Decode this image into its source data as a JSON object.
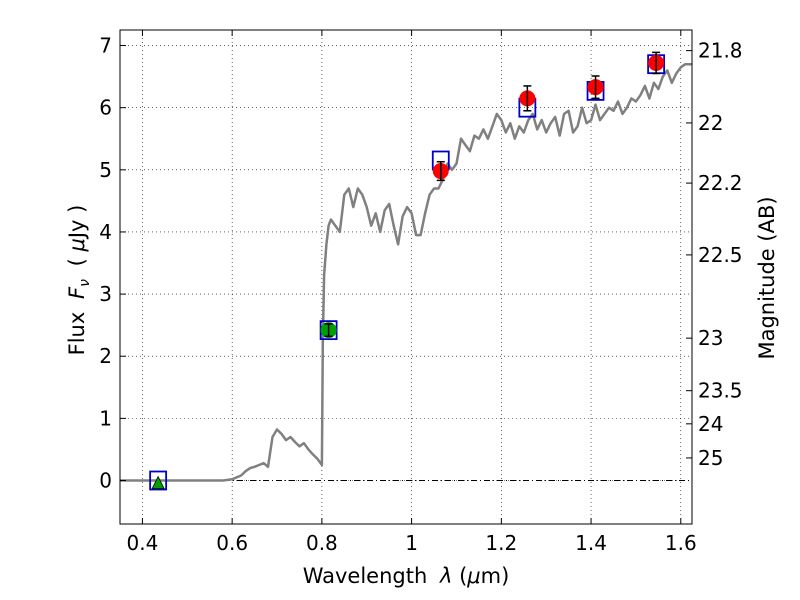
{
  "chart_data": {
    "type": "scatter",
    "title": "",
    "xlabel": {
      "text": "Wavelength",
      "symbol": "λ",
      "unit_open": "(",
      "unit_mu": "μ",
      "unit_rest": "m)"
    },
    "ylabel": {
      "text": "Flux",
      "symbol": "F",
      "sub": "ν",
      "unit_open": "(",
      "unit_mu": "μ",
      "unit_rest": "Jy",
      "unit_close": ")"
    },
    "ylabel_right": "Magnitude (AB)",
    "xlim": [
      0.35,
      1.625
    ],
    "ylim": [
      -0.7,
      7.25
    ],
    "x_ticks": [
      0.4,
      0.6,
      0.8,
      1.0,
      1.2,
      1.4,
      1.6
    ],
    "x_tick_labels": [
      "0.4",
      "0.6",
      "0.8",
      "1",
      "1.2",
      "1.4",
      "1.6"
    ],
    "y_ticks": [
      0,
      1,
      2,
      3,
      4,
      5,
      6,
      7
    ],
    "y_tick_labels": [
      "0",
      "1",
      "2",
      "3",
      "4",
      "5",
      "6",
      "7"
    ],
    "right_ticks": [
      {
        "label": "21.8",
        "mag": 21.8
      },
      {
        "label": "22",
        "mag": 22.0
      },
      {
        "label": "22.2",
        "mag": 22.2
      },
      {
        "label": "22.5",
        "mag": 22.5
      },
      {
        "label": "23",
        "mag": 23.0
      },
      {
        "label": "23.5",
        "mag": 23.5
      },
      {
        "label": "24",
        "mag": 24.0
      },
      {
        "label": "25",
        "mag": 25.0
      }
    ],
    "grid": true,
    "zero_line": true,
    "colors": {
      "model": "#808080",
      "detection": "#ff0000",
      "green": "#00a000",
      "model_box": "#0000cc",
      "errorbar": "#000000"
    },
    "model_sed": {
      "x": [
        0.35,
        0.4,
        0.45,
        0.5,
        0.55,
        0.58,
        0.6,
        0.61,
        0.62,
        0.63,
        0.64,
        0.65,
        0.66,
        0.67,
        0.68,
        0.69,
        0.7,
        0.71,
        0.72,
        0.73,
        0.74,
        0.75,
        0.76,
        0.77,
        0.78,
        0.79,
        0.8,
        0.802,
        0.805,
        0.81,
        0.815,
        0.82,
        0.83,
        0.84,
        0.85,
        0.86,
        0.87,
        0.88,
        0.89,
        0.9,
        0.91,
        0.92,
        0.93,
        0.94,
        0.95,
        0.96,
        0.97,
        0.98,
        0.99,
        1.0,
        1.01,
        1.02,
        1.03,
        1.04,
        1.05,
        1.06,
        1.07,
        1.08,
        1.09,
        1.1,
        1.11,
        1.12,
        1.13,
        1.14,
        1.15,
        1.16,
        1.17,
        1.18,
        1.19,
        1.2,
        1.21,
        1.22,
        1.23,
        1.24,
        1.25,
        1.26,
        1.27,
        1.28,
        1.29,
        1.3,
        1.31,
        1.32,
        1.33,
        1.34,
        1.35,
        1.36,
        1.37,
        1.38,
        1.39,
        1.4,
        1.41,
        1.42,
        1.43,
        1.44,
        1.45,
        1.46,
        1.47,
        1.48,
        1.49,
        1.5,
        1.51,
        1.52,
        1.53,
        1.54,
        1.55,
        1.56,
        1.57,
        1.58,
        1.59,
        1.6,
        1.61,
        1.62,
        1.625
      ],
      "y": [
        0.0,
        0.0,
        0.0,
        0.0,
        0.0,
        0.0,
        0.02,
        0.05,
        0.08,
        0.15,
        0.2,
        0.22,
        0.25,
        0.28,
        0.22,
        0.7,
        0.82,
        0.75,
        0.65,
        0.7,
        0.62,
        0.55,
        0.6,
        0.5,
        0.42,
        0.35,
        0.25,
        2.2,
        3.3,
        3.8,
        4.1,
        4.2,
        4.1,
        4.0,
        4.6,
        4.7,
        4.4,
        4.7,
        4.6,
        4.4,
        4.1,
        4.3,
        4.0,
        4.35,
        4.45,
        4.1,
        3.8,
        4.25,
        4.4,
        4.3,
        3.95,
        3.95,
        4.3,
        4.6,
        4.7,
        4.7,
        4.85,
        5.1,
        5.0,
        5.1,
        5.5,
        5.4,
        5.3,
        5.55,
        5.5,
        5.65,
        5.5,
        5.7,
        5.9,
        5.8,
        5.6,
        5.75,
        5.5,
        5.7,
        5.6,
        5.8,
        5.9,
        5.65,
        5.8,
        5.6,
        5.75,
        5.85,
        5.55,
        5.9,
        5.95,
        5.6,
        5.7,
        6.0,
        5.75,
        5.8,
        6.05,
        5.8,
        5.9,
        6.0,
        5.95,
        6.1,
        5.9,
        6.0,
        6.15,
        6.1,
        6.2,
        6.35,
        6.15,
        6.4,
        6.3,
        6.5,
        6.6,
        6.4,
        6.55,
        6.65,
        6.7,
        6.7,
        6.7
      ]
    },
    "model_photometry": [
      {
        "x": 0.435,
        "y": 0.0
      },
      {
        "x": 0.815,
        "y": 2.42
      },
      {
        "x": 1.065,
        "y": 5.15
      },
      {
        "x": 1.258,
        "y": 6.0
      },
      {
        "x": 1.41,
        "y": 6.27
      },
      {
        "x": 1.545,
        "y": 6.7
      }
    ],
    "observed": [
      {
        "x": 0.435,
        "y": -0.05,
        "err": 0,
        "marker": "triangle",
        "color": "green"
      },
      {
        "x": 0.815,
        "y": 2.42,
        "err": 0.1,
        "marker": "circle",
        "color": "green"
      },
      {
        "x": 1.065,
        "y": 4.98,
        "err": 0.15,
        "marker": "circle",
        "color": "red"
      },
      {
        "x": 1.258,
        "y": 6.15,
        "err": 0.2,
        "marker": "circle",
        "color": "red"
      },
      {
        "x": 1.41,
        "y": 6.33,
        "err": 0.18,
        "marker": "circle",
        "color": "red"
      },
      {
        "x": 1.545,
        "y": 6.72,
        "err": 0.17,
        "marker": "circle",
        "color": "red"
      }
    ]
  }
}
